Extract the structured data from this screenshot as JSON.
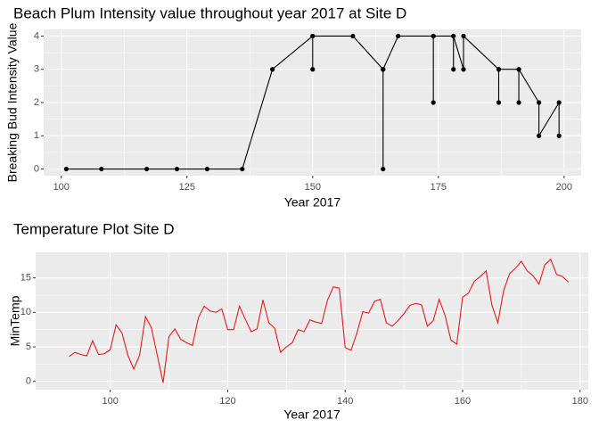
{
  "chart_data": [
    {
      "type": "line",
      "title": "Beach Plum Intensity value throughout year 2017 at Site D",
      "x_label": "Year 2017",
      "y_label": "Breaking Bud Intensity Value",
      "markers": true,
      "grid": true,
      "series": [
        {
          "color": "#000000",
          "x": [
            101,
            108,
            117,
            123,
            129,
            136,
            142,
            150,
            150,
            150,
            158,
            164,
            164,
            164,
            167,
            174,
            174,
            174,
            178,
            178,
            178,
            180,
            180,
            187,
            187,
            187,
            191,
            191,
            191,
            195,
            195,
            199,
            199
          ],
          "values": [
            0,
            0,
            0,
            0,
            0,
            0,
            3,
            4,
            3,
            4,
            4,
            3,
            0,
            3,
            4,
            4,
            2,
            4,
            4,
            3,
            4,
            3,
            4,
            3,
            2,
            3,
            3,
            2,
            3,
            2,
            1,
            2,
            1
          ]
        }
      ],
      "xlim": [
        96.5,
        203.4
      ],
      "xticks": [
        100,
        125,
        150,
        175,
        200
      ],
      "ylim": [
        -0.2,
        4.2
      ],
      "yticks": [
        0,
        1,
        2,
        3,
        4
      ]
    },
    {
      "type": "line",
      "title": "Temperature Plot Site D",
      "x_label": "Year 2017",
      "y_label": "MinTemp",
      "markers": false,
      "grid": true,
      "series": [
        {
          "color": "#e41a1c",
          "x": [
            93,
            94,
            95,
            96,
            97,
            98,
            99,
            100,
            101,
            102,
            103,
            104,
            105,
            106,
            107,
            108,
            109,
            110,
            111,
            112,
            113,
            114,
            115,
            116,
            117,
            118,
            119,
            120,
            121,
            122,
            123,
            124,
            125,
            126,
            127,
            128,
            129,
            130,
            131,
            132,
            133,
            134,
            135,
            136,
            137,
            138,
            139,
            140,
            141,
            142,
            143,
            144,
            145,
            146,
            147,
            148,
            149,
            150,
            151,
            152,
            153,
            154,
            155,
            156,
            157,
            158,
            159,
            160,
            161,
            162,
            163,
            164,
            165,
            166,
            167,
            168,
            169,
            170,
            171,
            172,
            173,
            174,
            175,
            176,
            177,
            178
          ],
          "values": [
            3.6,
            4.2,
            3.9,
            3.7,
            5.9,
            3.9,
            4.0,
            4.6,
            8.2,
            7.0,
            3.8,
            1.8,
            3.8,
            9.4,
            7.8,
            3.8,
            -0.2,
            6.5,
            7.6,
            6.1,
            5.6,
            5.2,
            9.2,
            10.9,
            10.2,
            10.0,
            10.5,
            7.5,
            7.5,
            10.9,
            9.0,
            7.2,
            7.6,
            11.8,
            8.5,
            7.7,
            4.2,
            5.0,
            5.6,
            7.5,
            7.2,
            8.9,
            8.6,
            8.4,
            11.8,
            13.7,
            13.5,
            4.9,
            4.5,
            7.0,
            10.1,
            9.9,
            11.6,
            11.9,
            8.5,
            8.0,
            8.8,
            9.8,
            11.0,
            11.3,
            11.1,
            8.0,
            8.8,
            11.9,
            9.6,
            6.0,
            5.4,
            12.2,
            12.8,
            14.5,
            15.2,
            16.0,
            11.0,
            8.5,
            13.2,
            15.6,
            16.4,
            17.4,
            16.0,
            15.3,
            14.1,
            16.9,
            17.7,
            15.5,
            15.2,
            14.4
          ]
        }
      ],
      "xlim": [
        87.3,
        181.4
      ],
      "xticks": [
        100,
        120,
        140,
        160,
        180
      ],
      "ylim": [
        -1.2,
        18.7
      ],
      "yticks": [
        0,
        5,
        10,
        15
      ]
    }
  ]
}
